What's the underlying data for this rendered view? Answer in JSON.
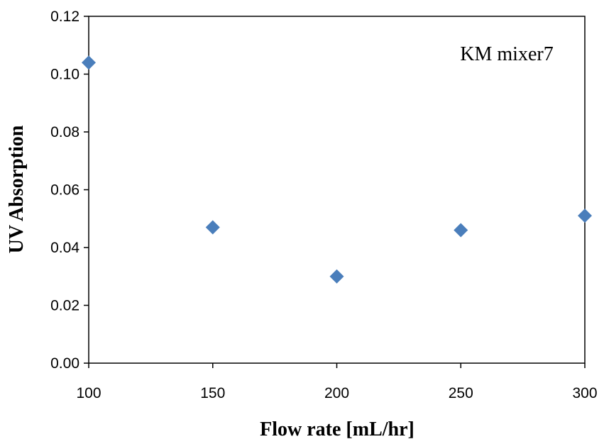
{
  "chart_data": {
    "type": "scatter",
    "title": "",
    "xlabel": "Flow rate [mL/hr]",
    "ylabel": "UV Absorption",
    "xlim": [
      100,
      300
    ],
    "ylim": [
      0,
      0.12
    ],
    "x_ticks": [
      "100",
      "150",
      "200",
      "250",
      "300"
    ],
    "y_ticks": [
      "0.00",
      "0.02",
      "0.04",
      "0.06",
      "0.08",
      "0.10",
      "0.12"
    ],
    "annotation": "KM mixer7",
    "grid": false,
    "marker": "diamond",
    "series": [
      {
        "color": "#4A7EBB",
        "points": [
          {
            "x": 100,
            "y": 0.104
          },
          {
            "x": 150,
            "y": 0.047
          },
          {
            "x": 200,
            "y": 0.03
          },
          {
            "x": 250,
            "y": 0.046
          },
          {
            "x": 300,
            "y": 0.051
          }
        ]
      }
    ]
  }
}
